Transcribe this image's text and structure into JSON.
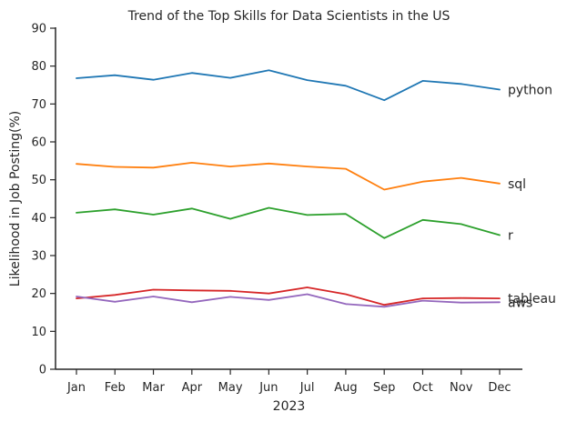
{
  "chart_data": {
    "type": "line",
    "title": "Trend of the Top Skills for Data Scientists in the US",
    "xlabel": "2023",
    "ylabel": "Likelihood in Job Posting(%)",
    "categories": [
      "Jan",
      "Feb",
      "Mar",
      "Apr",
      "May",
      "Jun",
      "Jul",
      "Aug",
      "Sep",
      "Oct",
      "Nov",
      "Dec"
    ],
    "ylim": [
      0,
      90
    ],
    "yticks": [
      0,
      10,
      20,
      30,
      40,
      50,
      60,
      70,
      80,
      90
    ],
    "grid": false,
    "legend": "labels at line ends (right)",
    "series": [
      {
        "name": "python",
        "color": "#1f77b4",
        "values": [
          76.8,
          77.6,
          76.4,
          78.2,
          76.9,
          78.9,
          76.3,
          74.8,
          71.0,
          76.1,
          75.3,
          73.8
        ]
      },
      {
        "name": "sql",
        "color": "#ff7f0e",
        "values": [
          54.2,
          53.4,
          53.2,
          54.5,
          53.5,
          54.3,
          53.5,
          52.9,
          47.4,
          49.5,
          50.5,
          49.0
        ]
      },
      {
        "name": "r",
        "color": "#2ca02c",
        "values": [
          41.3,
          42.2,
          40.8,
          42.4,
          39.7,
          42.6,
          40.7,
          41.0,
          34.6,
          39.4,
          38.3,
          35.4
        ]
      },
      {
        "name": "tableau",
        "color": "#d62728",
        "values": [
          18.7,
          19.6,
          21.0,
          20.8,
          20.7,
          20.0,
          21.6,
          19.8,
          17.0,
          18.7,
          18.8,
          18.7
        ]
      },
      {
        "name": "aws",
        "color": "#9467bd",
        "values": [
          19.2,
          17.8,
          19.2,
          17.7,
          19.1,
          18.3,
          19.8,
          17.2,
          16.5,
          18.1,
          17.6,
          17.7
        ]
      }
    ]
  }
}
